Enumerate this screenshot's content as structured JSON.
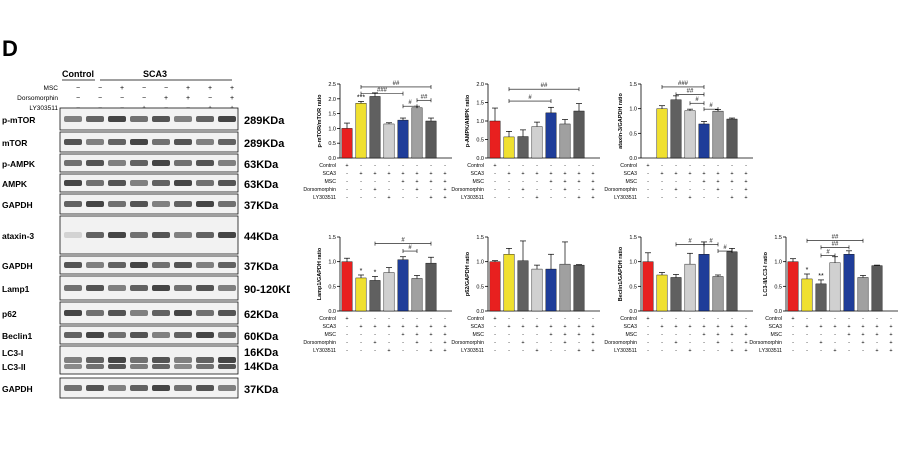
{
  "panel_label": "D",
  "western_blot": {
    "header_left": "Control",
    "header_right": "SCA3",
    "treatments": [
      {
        "label": "MSC",
        "signs": [
          "−",
          "−",
          "+",
          "−",
          "−",
          "+",
          "+",
          "+"
        ]
      },
      {
        "label": "Dorsomorphin",
        "signs": [
          "−",
          "−",
          "−",
          "−",
          "+",
          "+",
          "−",
          "+"
        ]
      },
      {
        "label": "LY303511",
        "signs": [
          "−",
          "−",
          "−",
          "+",
          "−",
          "−",
          "+",
          "+"
        ]
      }
    ],
    "bands": [
      {
        "label": "p-mTOR",
        "size": "289KDa"
      },
      {
        "label": "mTOR",
        "size": "289KDa"
      },
      {
        "label": "p-AMPK",
        "size": "63KDa"
      },
      {
        "label": "AMPK",
        "size": "63KDa"
      },
      {
        "label": "GAPDH",
        "size": "37KDa"
      },
      {
        "label": "ataxin-3",
        "size": "44KDa"
      },
      {
        "label": "GAPDH",
        "size": "37KDa"
      },
      {
        "label": "Lamp1",
        "size": "90-120KDa"
      },
      {
        "label": "p62",
        "size": "62KDa"
      },
      {
        "label": "Beclin1",
        "size": "60KDa"
      },
      {
        "label": "LC3-I",
        "size": "16KDa"
      },
      {
        "label": "LC3-II",
        "size": "14KDa"
      },
      {
        "label": "GAPDH",
        "size": "37KDa"
      }
    ]
  },
  "condition_table": {
    "rows": [
      {
        "label": "Control",
        "signs": [
          "+",
          "-",
          "-",
          "-",
          "-",
          "-",
          "-",
          "-"
        ]
      },
      {
        "label": "SCA3",
        "signs": [
          "-",
          "+",
          "+",
          "+",
          "+",
          "+",
          "+",
          "+"
        ]
      },
      {
        "label": "MSC",
        "signs": [
          "-",
          "-",
          "-",
          "-",
          "+",
          "+",
          "+",
          "+"
        ]
      },
      {
        "label": "Dorsomorphin",
        "signs": [
          "-",
          "-",
          "+",
          "-",
          "-",
          "+",
          "-",
          "+"
        ]
      },
      {
        "label": "LY303511",
        "signs": [
          "-",
          "-",
          "-",
          "+",
          "-",
          "-",
          "+",
          "+"
        ]
      }
    ]
  },
  "colors": {
    "bars": [
      "#e8201f",
      "#f0e030",
      "#606060",
      "#d0d0d0",
      "#1f3d99",
      "#a0a0a0",
      "#5a5a5a",
      "#303030"
    ],
    "bracket": "#000000"
  },
  "chart_data": [
    {
      "type": "bar",
      "ylabel": "p-mTOR/mTOR ratio",
      "ylim": [
        0,
        2.5
      ],
      "yticks": [
        "0.0",
        "0.5",
        "1.0",
        "1.5",
        "2.0",
        "2.5"
      ],
      "values": [
        1.0,
        1.85,
        2.08,
        1.15,
        1.28,
        1.7,
        1.25,
        null
      ],
      "errors": [
        0.18,
        0.06,
        0.12,
        0.04,
        0.07,
        0.05,
        0.1,
        null
      ],
      "stars": [
        "",
        "***",
        "",
        "",
        "",
        "",
        "",
        ""
      ],
      "brackets": [
        {
          "from": 1,
          "to": 6,
          "level": 0.96,
          "label": "##"
        },
        {
          "from": 1,
          "to": 4,
          "level": 0.87,
          "label": "###"
        },
        {
          "from": 4,
          "to": 5,
          "level": 0.7,
          "label": "#"
        },
        {
          "from": 5,
          "to": 6,
          "level": 0.78,
          "label": "##"
        }
      ]
    },
    {
      "type": "bar",
      "ylabel": "p-AMPK/AMPK ratio",
      "ylim": [
        0,
        2.0
      ],
      "yticks": [
        "0.0",
        "0.5",
        "1.0",
        "1.5",
        "2.0"
      ],
      "values": [
        1.0,
        0.57,
        0.58,
        0.85,
        1.22,
        0.92,
        1.27,
        null
      ],
      "errors": [
        0.35,
        0.15,
        0.18,
        0.12,
        0.15,
        0.12,
        0.2,
        null
      ],
      "stars": [
        "",
        "",
        "",
        "",
        "",
        "",
        "",
        ""
      ],
      "brackets": [
        {
          "from": 1,
          "to": 6,
          "level": 0.93,
          "label": "##"
        },
        {
          "from": 1,
          "to": 4,
          "level": 0.77,
          "label": "#"
        }
      ]
    },
    {
      "type": "bar",
      "ylabel": "ataxin-3/GAPDH ratio",
      "ylim": [
        0,
        1.5
      ],
      "yticks": [
        "0.0",
        "0.5",
        "1.0",
        "1.5"
      ],
      "values": [
        null,
        1.0,
        1.18,
        0.96,
        0.69,
        0.95,
        0.79,
        null
      ],
      "errors": [
        null,
        0.06,
        0.08,
        0.03,
        0.05,
        0.03,
        0.02,
        null
      ],
      "stars": [
        "",
        "",
        "",
        "",
        "",
        "",
        "",
        ""
      ],
      "brackets": [
        {
          "from": 1,
          "to": 4,
          "level": 0.96,
          "label": "###"
        },
        {
          "from": 2,
          "to": 4,
          "level": 0.86,
          "label": "##"
        },
        {
          "from": 3,
          "to": 4,
          "level": 0.74,
          "label": "#"
        },
        {
          "from": 4,
          "to": 5,
          "level": 0.66,
          "label": "#"
        }
      ]
    },
    {
      "type": "bar",
      "ylabel": "Lamp1/GAPDH ratio",
      "ylim": [
        0,
        1.5
      ],
      "yticks": [
        "0.0",
        "0.5",
        "1.0",
        "1.5"
      ],
      "values": [
        1.0,
        0.67,
        0.62,
        0.78,
        1.04,
        0.66,
        0.97,
        null
      ],
      "errors": [
        0.07,
        0.06,
        0.08,
        0.1,
        0.06,
        0.06,
        0.12,
        null
      ],
      "stars": [
        "",
        "*",
        "*",
        "",
        "",
        "",
        "",
        ""
      ],
      "brackets": [
        {
          "from": 2,
          "to": 6,
          "level": 0.91,
          "label": "#"
        },
        {
          "from": 4,
          "to": 5,
          "level": 0.81,
          "label": "#"
        }
      ]
    },
    {
      "type": "bar",
      "ylabel": "p62/GAPDH ratio",
      "ylim": [
        0,
        1.5
      ],
      "yticks": [
        "0.0",
        "0.5",
        "1.0",
        "1.5"
      ],
      "values": [
        1.0,
        1.15,
        1.02,
        0.85,
        0.85,
        0.95,
        0.93,
        null
      ],
      "errors": [
        0.02,
        0.12,
        0.4,
        0.08,
        0.3,
        0.45,
        0.01,
        null
      ],
      "stars": [
        "",
        "",
        "",
        "",
        "",
        "",
        "",
        ""
      ],
      "brackets": []
    },
    {
      "type": "bar",
      "ylabel": "Beclin1/GAPDH ratio",
      "ylim": [
        0,
        1.5
      ],
      "yticks": [
        "0.0",
        "0.5",
        "1.0",
        "1.5"
      ],
      "values": [
        1.0,
        0.73,
        0.68,
        0.95,
        1.15,
        0.7,
        1.2,
        null
      ],
      "errors": [
        0.18,
        0.05,
        0.06,
        0.22,
        0.25,
        0.03,
        0.07,
        null
      ],
      "stars": [
        "",
        "",
        "",
        "",
        "",
        "",
        "",
        ""
      ],
      "brackets": [
        {
          "from": 2,
          "to": 4,
          "level": 0.9,
          "label": "#"
        },
        {
          "from": 4,
          "to": 5,
          "level": 0.9,
          "label": "#"
        },
        {
          "from": 5,
          "to": 6,
          "level": 0.81,
          "label": "#"
        }
      ]
    },
    {
      "type": "bar",
      "ylabel": "LC3-II/LC3-I ratio",
      "ylim": [
        0,
        1.5
      ],
      "yticks": [
        "0.0",
        "0.5",
        "1.0",
        "1.5"
      ],
      "values": [
        1.0,
        0.65,
        0.55,
        0.98,
        1.15,
        0.68,
        0.92,
        null
      ],
      "errors": [
        0.06,
        0.1,
        0.08,
        0.12,
        0.07,
        0.04,
        0.01,
        null
      ],
      "stars": [
        "",
        "*",
        "**",
        "",
        "",
        "",
        "",
        ""
      ],
      "brackets": [
        {
          "from": 1,
          "to": 5,
          "level": 0.95,
          "label": "##"
        },
        {
          "from": 2,
          "to": 4,
          "level": 0.86,
          "label": "##"
        },
        {
          "from": 2,
          "to": 3,
          "level": 0.75,
          "label": "#"
        }
      ]
    }
  ]
}
